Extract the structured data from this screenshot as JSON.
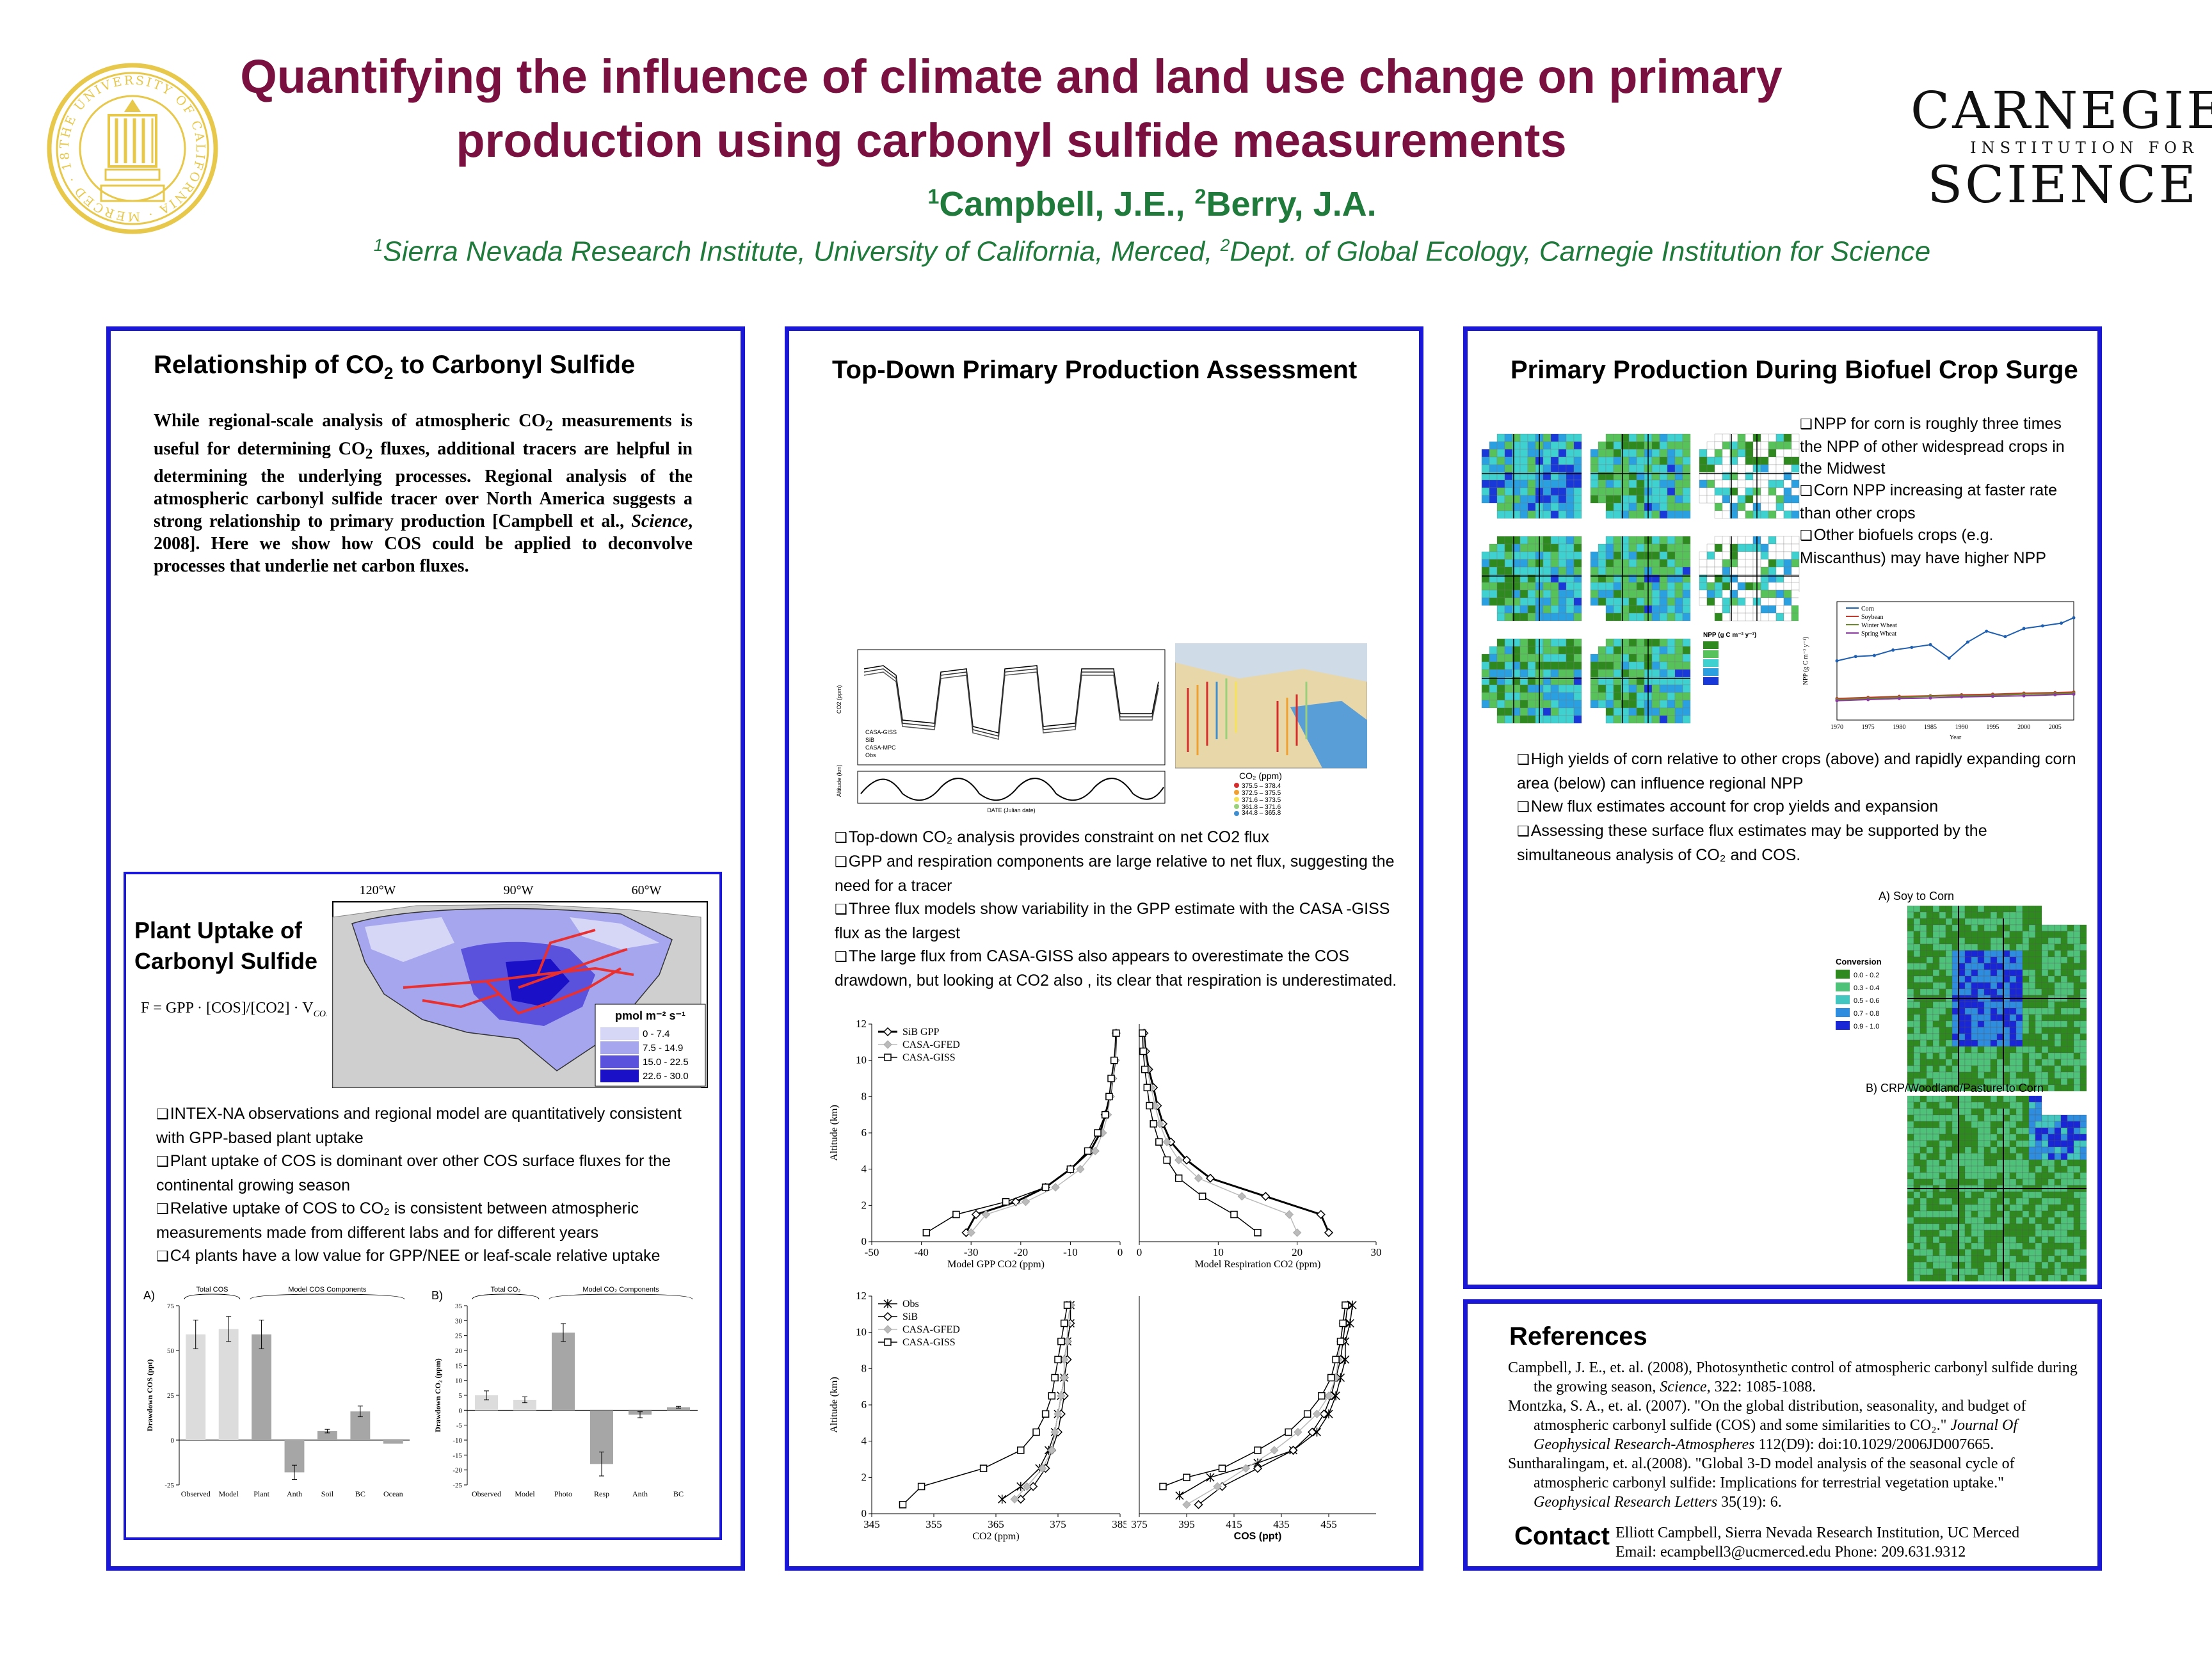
{
  "header": {
    "title_line1": "Quantifying the influence of climate and land use change on primary",
    "title_line2": "production using carbonyl sulfide measurements",
    "author1_sup": "1",
    "author1": "Campbell, J.E., ",
    "author2_sup": "2",
    "author2": "Berry, J.A.",
    "affil1_sup": "1",
    "affil1": "Sierra Nevada Research Institute, University of California, Merced, ",
    "affil2_sup": "2",
    "affil2": "Dept. of Global Ecology, Carnegie Institution for Science",
    "logo_right": {
      "line1": "CARNEGIE",
      "line2": "INSTITUTION FOR",
      "line3": "SCIENCE"
    },
    "seal_text": "THE UNIVERSITY OF CALIFORNIA · MERCED · 1868",
    "seal_color": "#e7c84a"
  },
  "panel1": {
    "heading_pre": "Relationship of CO",
    "heading_sub": "2",
    "heading_post": " to Carbonyl Sulfide",
    "intro_a": "While regional-scale analysis of atmospheric CO",
    "intro_sub1": "2",
    "intro_b": " measurements is useful for determining CO",
    "intro_sub2": "2",
    "intro_c": " fluxes, additional tracers are helpful in determining the underlying processes. Regional analysis of the atmospheric carbonyl sulfide tracer over North America suggests a strong relationship to primary production [Campbell et al., ",
    "intro_italic": "Science",
    "intro_d": ", 2008].  Here we show how COS could be applied to deconvolve processes that underlie net carbon fluxes.",
    "inner": {
      "heading_line1": "Plant Uptake of",
      "heading_line2": "Carbonyl Sulfide",
      "equation": "F = GPP · [COS]/[CO2] · V",
      "equation_sub": "COS/CO2",
      "map_lon_labels": [
        "120°W",
        "90°W",
        "60°W"
      ],
      "legend_title": "pmol m⁻² s⁻¹",
      "legend_items": [
        "0 - 7.4",
        "7.5 - 14.9",
        "15.0 - 22.5",
        "22.6 - 30.0"
      ],
      "legend_colors": [
        "#d6d6f7",
        "#a6a6ee",
        "#5a52dd",
        "#1a10c8"
      ],
      "bullets": [
        "INTEX-NA observations and regional model are quantitatively consistent with GPP-based plant uptake",
        "Plant uptake of COS is dominant over other COS surface fluxes for the continental growing season",
        "Relative uptake of COS to CO₂ is consistent between atmospheric measurements made from different labs and for different years",
        "C4 plants have a low value for GPP/NEE or leaf-scale relative uptake"
      ]
    }
  },
  "panel2": {
    "heading": "Top-Down Primary Production Assessment",
    "map_legend_title": "CO₂ (ppm)",
    "map_legend_items": [
      "375.5 – 378.4",
      "372.5 – 375.5",
      "371.6 – 373.5",
      "361.8 – 371.6",
      "344.8 – 365.8"
    ],
    "map_legend_colors": [
      "#d62c2c",
      "#f0a030",
      "#f5e35a",
      "#9bd07a",
      "#3f8fd0"
    ],
    "ts_legend": [
      "CASA-GISS",
      "SiB",
      "CASA-MPC",
      "Obs"
    ],
    "ts_ylabel": "CO2 (ppm)",
    "ts_alt_label": "Altitude (km)",
    "ts_xlabel": "DATE (Julian date)",
    "bullets": [
      "Top-down CO₂ analysis provides constraint on net CO2 flux",
      "GPP and respiration components are large relative to net flux, suggesting the need for a tracer",
      "Three flux models show variability in the GPP estimate with the CASA -GISS flux as the largest",
      "The large flux from CASA-GISS also appears to overestimate the COS drawdown, but looking at CO2 also , its clear that respiration is underestimated."
    ]
  },
  "panel3": {
    "heading": "Primary Production During Biofuel Crop Surge",
    "bullets_top": [
      "NPP for corn is roughly three times the NPP of other widespread crops in the Midwest",
      "Corn NPP increasing at faster rate than other crops",
      "Other biofuels crops (e.g. Miscanthus) may have higher NPP"
    ],
    "bullets_mid": [
      "High yields of corn relative to other crops (above) and rapidly expanding corn area (below) can influence regional NPP",
      "New flux estimates account for crop yields and expansion",
      "Assessing these surface flux estimates may be supported by the simultaneous analysis of CO₂ and COS."
    ],
    "map_a_label": "A) Soy to Corn",
    "map_b_label": "B) CRP/Woodland/Pasture to Corn",
    "conv_title": "Conversion",
    "conv_items": [
      "0.0 - 0.2",
      "0.3 - 0.4",
      "0.5 - 0.6",
      "0.7 - 0.8",
      "0.9 - 1.0"
    ],
    "conv_colors": [
      "#2e8a1e",
      "#4fc27a",
      "#43c6c0",
      "#2f8de0",
      "#1826d6"
    ],
    "npp_legend_title": "NPP (g C m⁻² y⁻¹)",
    "npp_legend_colors": [
      "#2e8a1e",
      "#57c25a",
      "#3fd0d0",
      "#2aa0e0",
      "#1838d8"
    ],
    "npp_chart_legend": [
      "Corn",
      "Soybean",
      "Winter Wheat",
      "Spring Wheat"
    ],
    "npp_ylabel": "NPP (g C m⁻² y⁻¹)",
    "npp_xlabel": "Year"
  },
  "references": {
    "heading": "References",
    "items": [
      {
        "a": "Campbell, J. E., et. al. (2008), Photosynthetic control of atmospheric carbonyl sulfide during the growing season, ",
        "i": "Science",
        "b": ", 322: 1085-1088."
      },
      {
        "a": "Montzka, S. A., et. al. (2007). \"On the global distribution, seasonality, and budget of atmospheric carbonyl sulfide (COS) and some similarities to CO₂.\" ",
        "i": "Journal Of Geophysical Research-Atmospheres",
        "b": " 112(D9): doi:10.1029/2006JD007665."
      },
      {
        "a": "Suntharalingam, et. al.(2008). \"Global 3-D model analysis of the seasonal cycle of atmospheric carbonyl sulfide: Implications for terrestrial vegetation uptake.\" ",
        "i": "Geophysical Research Letters",
        "b": " 35(19): 6."
      }
    ],
    "contact_heading": "Contact",
    "contact_line1": "Elliott Campbell, Sierra Nevada Research Institution, UC Merced",
    "contact_line2": "Email: ecampbell3@ucmerced.edu    Phone: 209.631.9312"
  },
  "chart_data": [
    {
      "id": "cos-flux-bars",
      "type": "bar",
      "panel_label": "A)",
      "group_labels": [
        "Total COS",
        "Model COS Components"
      ],
      "categories": [
        "Observed",
        "Model",
        "Plant",
        "Anth",
        "Soil",
        "BC",
        "Ocean"
      ],
      "values": [
        59,
        62,
        59,
        -18,
        5,
        16,
        -2
      ],
      "errors": [
        8,
        7,
        8,
        4,
        1,
        3,
        0
      ],
      "colors": [
        "#dcdcdc",
        "#dcdcdc",
        "#a6a6a6",
        "#a6a6a6",
        "#a6a6a6",
        "#a6a6a6",
        "#a6a6a6"
      ],
      "ylabel": "Drawdown COS (ppt)",
      "ylim": [
        -25,
        75
      ],
      "yticks": [
        -25,
        0,
        25,
        50,
        75
      ]
    },
    {
      "id": "co2-flux-bars",
      "type": "bar",
      "panel_label": "B)",
      "group_labels": [
        "Total CO₂",
        "Model CO₂ Components"
      ],
      "categories": [
        "Observed",
        "Model",
        "Photo",
        "Resp",
        "Anth",
        "BC"
      ],
      "values": [
        5,
        3.5,
        26,
        -18,
        -1.5,
        1
      ],
      "errors": [
        1.5,
        1,
        3,
        4,
        1,
        0.3
      ],
      "colors": [
        "#dcdcdc",
        "#dcdcdc",
        "#a6a6a6",
        "#a6a6a6",
        "#a6a6a6",
        "#a6a6a6"
      ],
      "ylabel": "Drawdown CO₂ (ppm)",
      "ylim": [
        -25,
        35
      ],
      "yticks": [
        -25,
        -20,
        -15,
        -10,
        -5,
        0,
        5,
        10,
        15,
        20,
        25,
        30,
        35
      ]
    },
    {
      "id": "gpp-profile",
      "type": "line",
      "xlabel": "Model GPP CO2 (ppm)",
      "ylabel": "Altitude (km)",
      "xlim": [
        -50,
        0
      ],
      "ylim": [
        0,
        12
      ],
      "xticks": [
        -50,
        -40,
        -30,
        -20,
        -10,
        0
      ],
      "yticks": [
        0,
        2,
        4,
        6,
        8,
        10,
        12
      ],
      "series": [
        {
          "name": "SiB GPP",
          "style": "diamond-bold",
          "x": [
            -31,
            -29,
            -21,
            -15,
            -10,
            -6,
            -4,
            -3,
            -2,
            -1.5,
            -1,
            -0.8
          ],
          "y": [
            0.5,
            1.5,
            2.2,
            3,
            4,
            5,
            6,
            7,
            8,
            9,
            10,
            11.5
          ]
        },
        {
          "name": "CASA-GFED",
          "style": "grey-diamond",
          "x": [
            -30,
            -27,
            -19,
            -13,
            -8,
            -5,
            -3.5,
            -2.5,
            -2,
            -1.5,
            -1,
            -0.8
          ],
          "y": [
            0.5,
            1.5,
            2.2,
            3,
            4,
            5,
            6,
            7,
            8,
            9,
            10,
            11.5
          ]
        },
        {
          "name": "CASA-GISS",
          "style": "open-square",
          "x": [
            -39,
            -33,
            -23,
            -15,
            -10,
            -6.5,
            -4.5,
            -3,
            -2.2,
            -1.8,
            -1.2,
            -0.8
          ],
          "y": [
            0.5,
            1.5,
            2.2,
            3,
            4,
            5,
            6,
            7,
            8,
            9,
            10,
            11.5
          ]
        }
      ]
    },
    {
      "id": "resp-profile",
      "type": "line",
      "xlabel": "Model Respiration CO2 (ppm)",
      "xlim": [
        0,
        30
      ],
      "ylim": [
        0,
        12
      ],
      "xticks": [
        0,
        10,
        20,
        30
      ],
      "series": [
        {
          "name": "SiB",
          "style": "diamond-bold",
          "x": [
            24,
            23,
            16,
            9,
            6,
            4,
            3,
            2.3,
            1.8,
            1.2,
            0.8,
            0.6
          ],
          "y": [
            0.5,
            1.5,
            2.5,
            3.5,
            4.5,
            5.5,
            6.5,
            7.5,
            8.5,
            9.5,
            10.5,
            11.5
          ]
        },
        {
          "name": "CASA-GFED",
          "style": "grey-diamond",
          "x": [
            20,
            19,
            13,
            7.5,
            5,
            3.5,
            2.6,
            2,
            1.5,
            1,
            0.7,
            0.5
          ],
          "y": [
            0.5,
            1.5,
            2.5,
            3.5,
            4.5,
            5.5,
            6.5,
            7.5,
            8.5,
            9.5,
            10.5,
            11.5
          ]
        },
        {
          "name": "CASA-GISS",
          "style": "open-square",
          "x": [
            15,
            12,
            8,
            5,
            3.5,
            2.5,
            1.8,
            1.3,
            1,
            0.7,
            0.5,
            0.4
          ],
          "y": [
            0.5,
            1.5,
            2.5,
            3.5,
            4.5,
            5.5,
            6.5,
            7.5,
            8.5,
            9.5,
            10.5,
            11.5
          ]
        }
      ]
    },
    {
      "id": "co2-obs-profile",
      "type": "line",
      "xlabel": "CO2 (ppm)",
      "ylabel": "Altitude (km)",
      "xlim": [
        345,
        385
      ],
      "ylim": [
        0,
        12
      ],
      "xticks": [
        345,
        355,
        365,
        375,
        385
      ],
      "yticks": [
        0,
        2,
        4,
        6,
        8,
        10,
        12
      ],
      "series": [
        {
          "name": "Obs",
          "style": "star",
          "x": [
            366,
            369,
            372,
            373.5,
            374.5,
            375,
            375.5,
            376,
            376,
            376.5,
            377,
            377
          ],
          "y": [
            0.8,
            1.5,
            2.5,
            3.5,
            4.5,
            5.5,
            6.5,
            7.5,
            8.5,
            9.5,
            10.5,
            11.5
          ]
        },
        {
          "name": "SiB",
          "style": "open-diamond",
          "x": [
            369,
            371,
            373,
            374,
            375,
            375.5,
            376,
            376,
            376.5,
            376.5,
            377,
            377
          ],
          "y": [
            0.8,
            1.5,
            2.5,
            3.5,
            4.5,
            5.5,
            6.5,
            7.5,
            8.5,
            9.5,
            10.5,
            11.5
          ]
        },
        {
          "name": "CASA-GFED",
          "style": "grey-diamond",
          "x": [
            368,
            370,
            372.5,
            374,
            374.5,
            375,
            375.5,
            376,
            376,
            376.5,
            376.5,
            377
          ],
          "y": [
            0.8,
            1.5,
            2.5,
            3.5,
            4.5,
            5.5,
            6.5,
            7.5,
            8.5,
            9.5,
            10.5,
            11.5
          ]
        },
        {
          "name": "CASA-GISS",
          "style": "open-square",
          "x": [
            350,
            353,
            363,
            369,
            371.5,
            373,
            374,
            374.5,
            375,
            375.5,
            376,
            376.5
          ],
          "y": [
            0.5,
            1.5,
            2.5,
            3.5,
            4.5,
            5.5,
            6.5,
            7.5,
            8.5,
            9.5,
            10.5,
            11.5
          ]
        }
      ]
    },
    {
      "id": "cos-obs-profile",
      "type": "line",
      "xlabel": "COS (ppt)",
      "xlim": [
        375,
        475
      ],
      "ylim": [
        0,
        12
      ],
      "xticks": [
        375,
        395,
        415,
        435,
        455
      ],
      "series": [
        {
          "name": "Obs",
          "style": "star",
          "x": [
            392,
            405,
            425,
            440,
            450,
            455,
            458,
            460,
            462,
            462,
            464,
            465
          ],
          "y": [
            1,
            2,
            2.8,
            3.5,
            4.5,
            5.5,
            6.5,
            7.5,
            8.5,
            9.5,
            10.5,
            11.5
          ]
        },
        {
          "name": "SiB",
          "style": "open-diamond",
          "x": [
            400,
            410,
            425,
            440,
            448,
            453,
            456,
            458,
            460,
            461,
            462,
            463
          ],
          "y": [
            0.5,
            1.5,
            2.5,
            3.5,
            4.5,
            5.5,
            6.5,
            7.5,
            8.5,
            9.5,
            10.5,
            11.5
          ]
        },
        {
          "name": "CASA-GFED",
          "style": "grey-diamond",
          "x": [
            395,
            408,
            420,
            432,
            442,
            450,
            455,
            458,
            459,
            460,
            461,
            462
          ],
          "y": [
            0.5,
            1.5,
            2.5,
            3.5,
            4.5,
            5.5,
            6.5,
            7.5,
            8.5,
            9.5,
            10.5,
            11.5
          ]
        },
        {
          "name": "CASA-GISS",
          "style": "open-square",
          "x": [
            385,
            395,
            410,
            425,
            438,
            446,
            452,
            456,
            458,
            460,
            461,
            462
          ],
          "y": [
            1.5,
            2,
            2.5,
            3.5,
            4.5,
            5.5,
            6.5,
            7.5,
            8.5,
            9.5,
            10.5,
            11.5
          ]
        }
      ]
    },
    {
      "id": "npp-trend",
      "type": "line",
      "xlabel": "Year",
      "ylabel": "NPP (g C m⁻² y⁻¹)",
      "xlim": [
        1970,
        2008
      ],
      "ylim": [
        0,
        2200
      ],
      "xticks": [
        1970,
        1975,
        1980,
        1985,
        1990,
        1995,
        2000,
        2005
      ],
      "series": [
        {
          "name": "Corn",
          "color": "#1f5fb0",
          "x": [
            1970,
            1973,
            1976,
            1979,
            1982,
            1985,
            1988,
            1991,
            1994,
            1997,
            2000,
            2003,
            2006,
            2008
          ],
          "y": [
            1100,
            1180,
            1200,
            1300,
            1350,
            1400,
            1150,
            1450,
            1650,
            1550,
            1700,
            1750,
            1800,
            1900
          ]
        },
        {
          "name": "Soybean",
          "color": "#c03a2b",
          "x": [
            1970,
            1975,
            1980,
            1985,
            1990,
            1995,
            2000,
            2005,
            2008
          ],
          "y": [
            400,
            420,
            440,
            450,
            470,
            480,
            500,
            510,
            520
          ]
        },
        {
          "name": "Winter Wheat",
          "color": "#6a8a2a",
          "x": [
            1970,
            1975,
            1980,
            1985,
            1990,
            1995,
            2000,
            2005,
            2008
          ],
          "y": [
            380,
            400,
            420,
            440,
            450,
            460,
            480,
            490,
            500
          ]
        },
        {
          "name": "Spring Wheat",
          "color": "#8a3aa0",
          "x": [
            1970,
            1975,
            1980,
            1985,
            1990,
            1995,
            2000,
            2005,
            2008
          ],
          "y": [
            360,
            380,
            400,
            410,
            430,
            440,
            450,
            470,
            480
          ]
        }
      ]
    }
  ]
}
